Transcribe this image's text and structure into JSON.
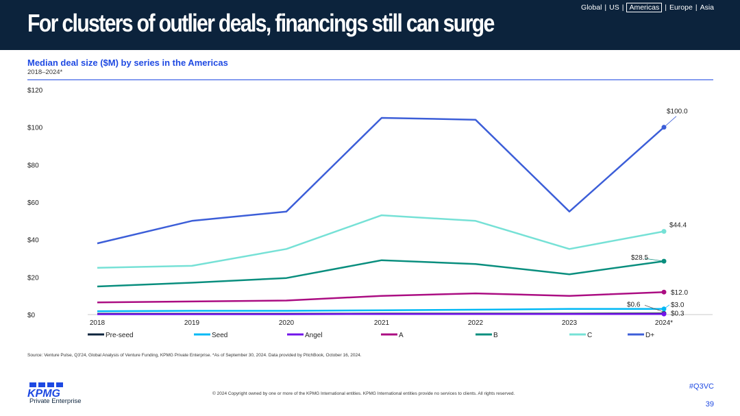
{
  "header": {
    "title": "For clusters of outlier deals, financings still can surge",
    "regions": [
      {
        "label": "Global",
        "active": false
      },
      {
        "label": "US",
        "active": false
      },
      {
        "label": "Americas",
        "active": true
      },
      {
        "label": "Europe",
        "active": false
      },
      {
        "label": "Asia",
        "active": false
      }
    ]
  },
  "chart_data": {
    "type": "line",
    "title": "Median deal size ($M) by series in the Americas",
    "subtitle": "2018–2024*",
    "xlabel": "",
    "ylabel": "",
    "x": [
      "2018",
      "2019",
      "2020",
      "2021",
      "2022",
      "2023",
      "2024*"
    ],
    "ylim": [
      0,
      120
    ],
    "yticks": [
      0,
      20,
      40,
      60,
      80,
      100,
      120
    ],
    "ytick_labels": [
      "$0",
      "$20",
      "$40",
      "$60",
      "$80",
      "$100",
      "$120"
    ],
    "grid": false,
    "legend_position": "bottom",
    "series": [
      {
        "name": "Pre-seed",
        "color": "#0c233c",
        "values": [
          0.4,
          0.4,
          0.4,
          0.5,
          0.5,
          0.5,
          0.6
        ],
        "end_label": "$0.6"
      },
      {
        "name": "Seed",
        "color": "#00b8f5",
        "values": [
          1.8,
          2.0,
          2.0,
          2.3,
          2.6,
          3.0,
          3.0
        ],
        "end_label": "$3.0"
      },
      {
        "name": "Angel",
        "color": "#7213ea",
        "values": [
          0.2,
          0.2,
          0.2,
          0.3,
          0.3,
          0.3,
          0.3
        ],
        "end_label": "$0.3"
      },
      {
        "name": "A",
        "color": "#ab0d82",
        "values": [
          6.5,
          7.0,
          7.5,
          10.0,
          11.3,
          10.0,
          12.0
        ],
        "end_label": "$12.0"
      },
      {
        "name": "B",
        "color": "#098e7e",
        "values": [
          15.0,
          17.0,
          19.5,
          29.0,
          27.0,
          21.5,
          28.5
        ],
        "end_label": "$28.5"
      },
      {
        "name": "C",
        "color": "#76e1d6",
        "values": [
          25.0,
          26.0,
          35.0,
          53.0,
          50.0,
          35.0,
          44.4
        ],
        "end_label": "$44.4"
      },
      {
        "name": "D+",
        "color": "#3c5ed8",
        "values": [
          38.0,
          50.0,
          55.0,
          105.0,
          104.0,
          55.0,
          100.0
        ],
        "end_label": "$100.0"
      }
    ]
  },
  "source": "Source: Venture Pulse, Q3'24, Global Analysis of Venture Funding, KPMG Private Enterprise. *As of September 30, 2024. Data provided by PitchBook, October 16, 2024.",
  "footer": {
    "logo": "KPMG",
    "logo_sub": "Private Enterprise",
    "copyright": "© 2024 Copyright owned by one or more of the KPMG International entities. KPMG International entities provide no services to clients. All rights reserved.",
    "hashtag": "#Q3VC",
    "page_number": "39"
  },
  "colors": {
    "header_bg": "#0c233c",
    "accent": "#1e49e2"
  }
}
